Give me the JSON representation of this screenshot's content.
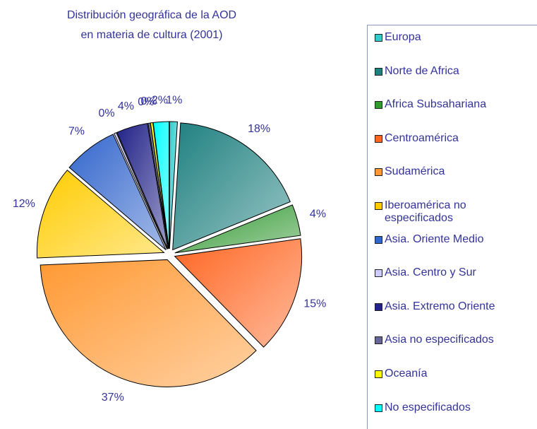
{
  "chart_data": {
    "type": "pie",
    "title": [
      "Distribución geográfica de la AOD",
      "en materia de cultura (2001)"
    ],
    "categories": [
      "Europa",
      "Norte de Africa",
      "Africa Subsahariana",
      "Centroamérica",
      "Sudamérica",
      "Iberoamérica no especificados",
      "Asia. Oriente Medio",
      "Asia. Centro y Sur",
      "Asia. Extremo Oriente",
      "Asia no especificados",
      "Oceanía",
      "No especificados"
    ],
    "values": [
      1,
      18,
      4,
      15,
      37,
      12,
      7,
      0.3,
      4,
      0.3,
      0.3,
      2
    ],
    "value_labels": [
      "1%",
      "18%",
      "4%",
      "15%",
      "37%",
      "12%",
      "7%",
      "0%",
      "4%",
      "0%",
      "0%",
      "2%"
    ],
    "colors": [
      "#33cccc",
      "#1f8080",
      "#339933",
      "#ff6622",
      "#ff9933",
      "#ffcc00",
      "#3366cc",
      "#ccccff",
      "#222288",
      "#666699",
      "#ffff00",
      "#00ffff"
    ]
  }
}
